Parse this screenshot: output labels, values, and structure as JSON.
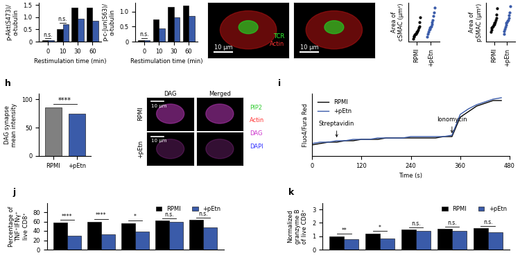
{
  "chart_data": [
    {
      "type": "grouped_bar",
      "y_label": "p-Akt(S473)/\nα-tubulin",
      "x_label": "Restimulation time (min)",
      "categories": [
        "0",
        "10",
        "30",
        "60"
      ],
      "series": [
        {
          "name": "RPMI",
          "color": "#000000",
          "values": [
            0.05,
            0.5,
            1.4,
            1.4
          ]
        },
        {
          "name": "+pEtn",
          "color": "#3a5ba9",
          "values": [
            0.05,
            0.7,
            0.95,
            0.85
          ]
        }
      ],
      "annotations": [
        "n.s.",
        "n.s.",
        null,
        null
      ],
      "ylim": [
        0,
        1.6
      ],
      "yticks": [
        0,
        0.5,
        1.0,
        1.5
      ]
    },
    {
      "type": "grouped_bar",
      "y_label": "p-c-Jun(S63)/\nα-tubulin",
      "x_label": "Restimulation time (min)",
      "categories": [
        "0",
        "10",
        "30",
        "60"
      ],
      "series": [
        {
          "name": "RPMI",
          "color": "#000000",
          "values": [
            0.05,
            0.75,
            1.15,
            1.2
          ]
        },
        {
          "name": "+pEtn",
          "color": "#3a5ba9",
          "values": [
            0.05,
            0.45,
            0.8,
            0.85
          ]
        }
      ],
      "annotations": [
        "n.s.",
        null,
        null,
        null
      ],
      "ylim": [
        0,
        1.3
      ],
      "yticks": [
        0,
        0.5,
        1.0
      ]
    },
    {
      "type": "image",
      "texts": [
        {
          "text": "TCR",
          "color": "#33ff33"
        },
        {
          "text": "Actin",
          "color": "#ff3333"
        }
      ],
      "scale_bar": "10 μm"
    },
    {
      "type": "image",
      "texts": [],
      "scale_bar": "10 μm"
    },
    {
      "type": "strip",
      "y_label": "Area of\ncSMAC (μm²)",
      "categories": [
        "RPMI",
        "+pEtn"
      ],
      "colors": [
        "#000000",
        "#3a5ba9"
      ],
      "values": [
        [
          3,
          5,
          6,
          7,
          8,
          8,
          9,
          10,
          11,
          12,
          14,
          16,
          20,
          25
        ],
        [
          5,
          8,
          10,
          12,
          13,
          14,
          15,
          16,
          18,
          20,
          22,
          26,
          30,
          35
        ]
      ],
      "ylim": [
        0,
        40
      ],
      "tick_labels": "x"
    },
    {
      "type": "strip",
      "y_label": "Area of\npSMAC (μm²)",
      "categories": [
        "RPMI",
        "+pEtn"
      ],
      "colors": [
        "#000000",
        "#3a5ba9"
      ],
      "values": [
        [
          50,
          60,
          70,
          75,
          80,
          85,
          90,
          95,
          100,
          110,
          120,
          140,
          170
        ],
        [
          40,
          55,
          65,
          75,
          85,
          95,
          100,
          105,
          110,
          120,
          135,
          150,
          180
        ]
      ],
      "ylim": [
        0,
        200
      ],
      "tick_labels": "x"
    },
    {
      "type": "bar",
      "panel_label": "h",
      "y_label": "DAG synapse\nmean intensity",
      "categories": [
        "RPMI",
        "+pEtn"
      ],
      "values": [
        85,
        74
      ],
      "colors": [
        "#808080",
        "#3a5ba9"
      ],
      "ylim": [
        0,
        110
      ],
      "yticks": [
        0,
        50,
        100
      ],
      "annotation": "****"
    },
    {
      "type": "image_grid",
      "column_titles": [
        "DAG",
        "Merged"
      ],
      "row_titles": [
        "RPMI",
        "+pEtn"
      ],
      "legend_texts": [
        {
          "text": "PIP2",
          "color": "#33cc33"
        },
        {
          "text": "Actin",
          "color": "#ff3333"
        },
        {
          "text": "DAG",
          "color": "#cc33cc"
        },
        {
          "text": "DAPI",
          "color": "#3333ff"
        }
      ],
      "scale_bar": "10 μm"
    },
    {
      "type": "line",
      "panel_label": "i",
      "x_label": "Time (s)",
      "y_label": "Fluo4/Fura Red",
      "x": [
        0,
        20,
        40,
        60,
        80,
        100,
        120,
        140,
        160,
        180,
        200,
        220,
        240,
        260,
        280,
        300,
        320,
        340,
        360,
        380,
        400,
        420,
        440,
        460
      ],
      "series": [
        {
          "name": "RPMI",
          "color": "#000000",
          "values": [
            0.08,
            0.09,
            0.1,
            0.1,
            0.11,
            0.11,
            0.12,
            0.12,
            0.12,
            0.13,
            0.13,
            0.13,
            0.13,
            0.13,
            0.13,
            0.13,
            0.14,
            0.14,
            0.28,
            0.32,
            0.36,
            0.38,
            0.4,
            0.4
          ]
        },
        {
          "name": "+pEtn",
          "color": "#3a5ba9",
          "values": [
            0.09,
            0.1,
            0.1,
            0.11,
            0.11,
            0.12,
            0.12,
            0.12,
            0.13,
            0.13,
            0.13,
            0.13,
            0.14,
            0.14,
            0.14,
            0.14,
            0.14,
            0.15,
            0.3,
            0.34,
            0.37,
            0.39,
            0.41,
            0.42
          ]
        }
      ],
      "xlim": [
        0,
        480
      ],
      "xticks": [
        0,
        120,
        240,
        360,
        480
      ],
      "ylim": [
        0,
        0.45
      ],
      "tick_labels": "x",
      "legend": "upper left",
      "annotations": [
        {
          "text": "Streptavidin",
          "x": 60,
          "y": 0.12
        },
        {
          "text": "Ionomycin",
          "x": 340,
          "y": 0.15
        }
      ]
    },
    {
      "type": "grouped_bar",
      "panel_label": "j",
      "y_label": "Percentage of\nTNF⁺IFNγ⁺\nlive CD8⁺",
      "categories": [
        null,
        null,
        null,
        null,
        null
      ],
      "series": [
        {
          "name": "RPMI",
          "color": "#000000",
          "values": [
            58,
            60,
            57,
            62,
            63
          ]
        },
        {
          "name": "+pEtn",
          "color": "#3a5ba9",
          "values": [
            30,
            32,
            38,
            60,
            48
          ]
        }
      ],
      "annotations": [
        "****",
        "****",
        "*",
        "n.s.",
        "n.s."
      ],
      "ylim": [
        0,
        100
      ],
      "yticks": [
        0,
        20,
        40,
        60,
        80
      ],
      "legend": "upper right",
      "tick_labels": "y"
    },
    {
      "type": "grouped_bar",
      "panel_label": "k",
      "y_label": "Normalized\ngranzyme B\nof live CD8⁺",
      "categories": [
        null,
        null,
        null,
        null,
        null
      ],
      "series": [
        {
          "name": "RPMI",
          "color": "#000000",
          "values": [
            1.0,
            1.2,
            1.5,
            1.55,
            1.6
          ]
        },
        {
          "name": "+pEtn",
          "color": "#3a5ba9",
          "values": [
            0.8,
            0.85,
            1.4,
            1.4,
            1.3
          ]
        }
      ],
      "annotations": [
        "**",
        "*",
        "n.s.",
        "n.s.",
        "n.s."
      ],
      "ylim": [
        0,
        3.5
      ],
      "yticks": [
        0,
        1,
        2,
        3
      ],
      "legend": "upper right",
      "tick_labels": "y"
    }
  ]
}
